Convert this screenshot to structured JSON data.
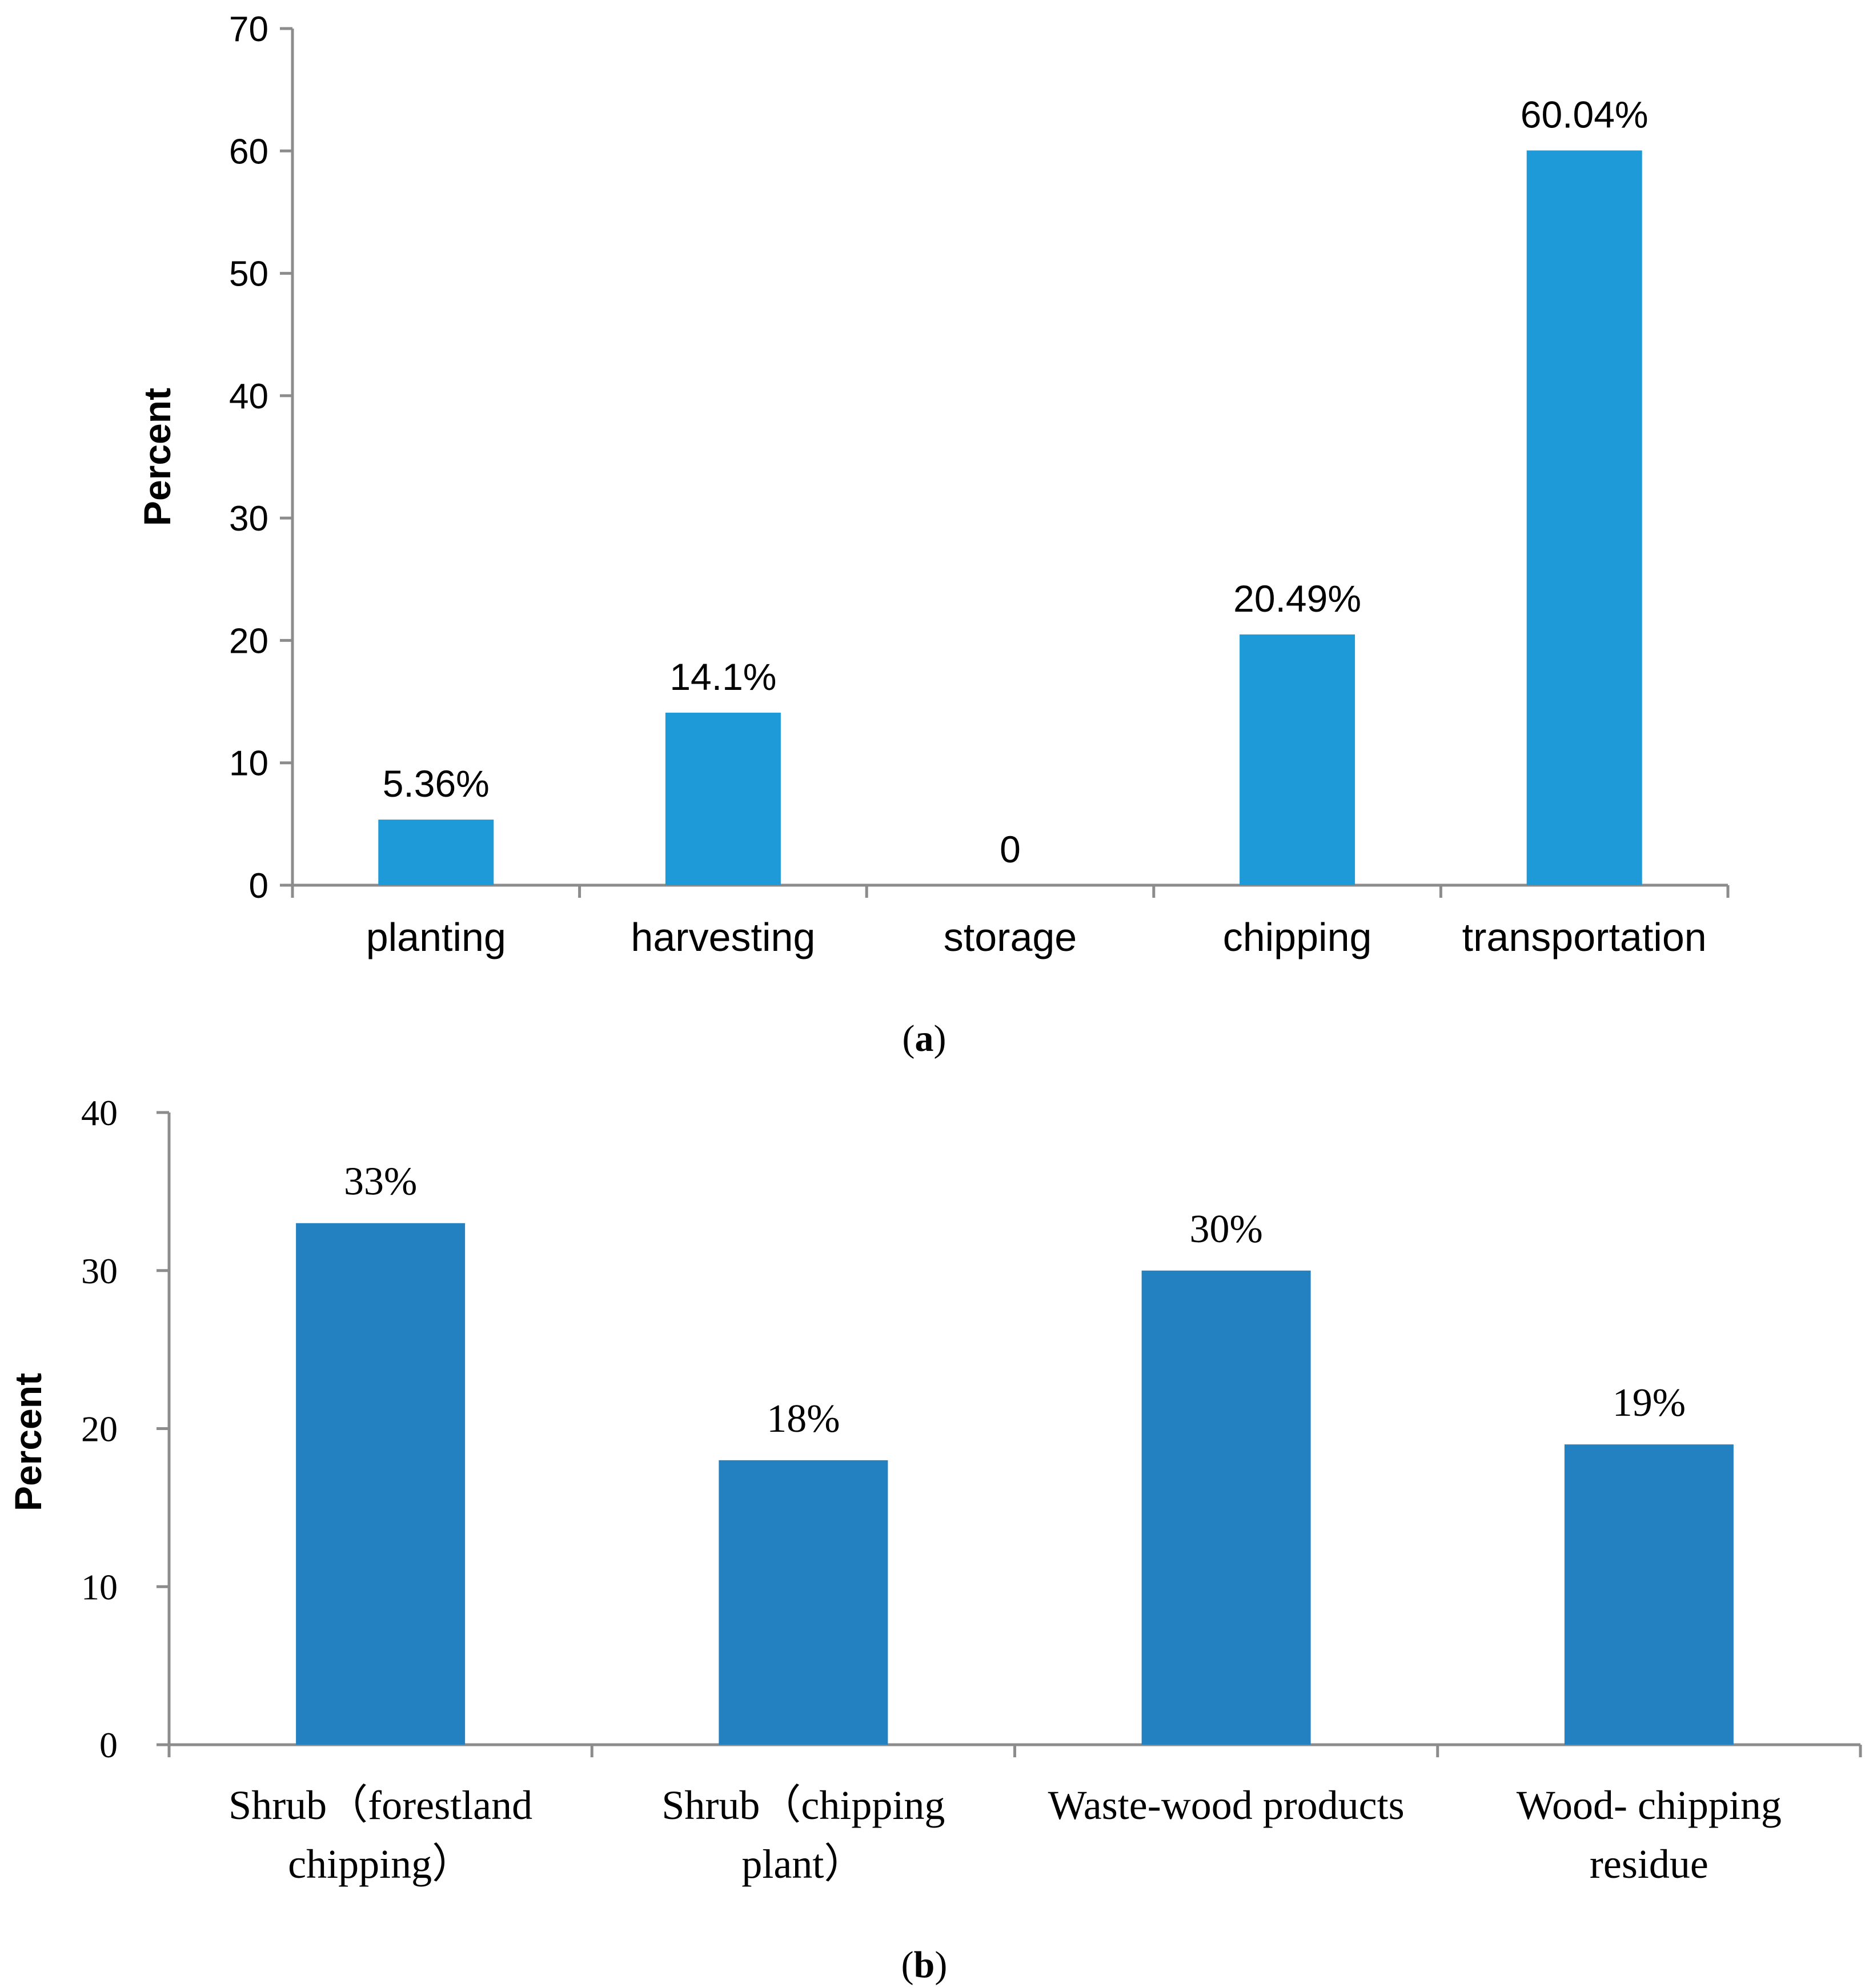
{
  "chart_data": [
    {
      "id": "a",
      "type": "bar",
      "caption_letter": "a",
      "ylabel": "Percent",
      "xlabel": "",
      "ylim": [
        0,
        70
      ],
      "yticks": [
        0,
        10,
        20,
        30,
        40,
        50,
        60,
        70
      ],
      "categories": [
        "planting",
        "harvesting",
        "storage",
        "chipping",
        "transportation"
      ],
      "values": [
        5.36,
        14.1,
        0,
        20.49,
        60.04
      ],
      "data_labels": [
        "5.36%",
        "14.1%",
        "0",
        "20.49%",
        "60.04%"
      ],
      "bar_color": "#1f9ad8",
      "grid": false
    },
    {
      "id": "b",
      "type": "bar",
      "caption_letter": "b",
      "ylabel": "Percent",
      "xlabel": "",
      "ylim": [
        0,
        40
      ],
      "yticks": [
        0,
        10,
        20,
        30,
        40
      ],
      "categories": [
        [
          "Shrub（forestland",
          "chipping）"
        ],
        [
          "Shrub（chipping",
          "plant）"
        ],
        [
          "Waste-wood products"
        ],
        [
          "Wood- chipping",
          "residue"
        ]
      ],
      "values": [
        33,
        18,
        30,
        19
      ],
      "data_labels": [
        "33%",
        "18%",
        "30%",
        "19%"
      ],
      "bar_color": "#2481c1",
      "grid": false
    }
  ]
}
